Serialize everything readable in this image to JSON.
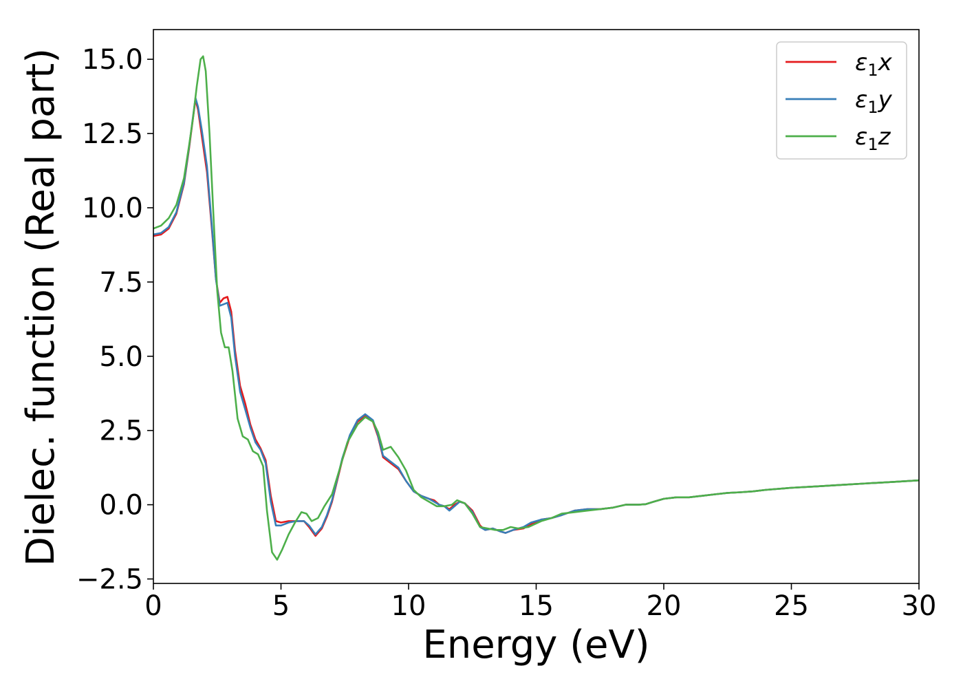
{
  "chart_data": {
    "type": "line",
    "title": "",
    "xlabel": "Energy (eV)",
    "ylabel": "Dielec. function (Real part)",
    "xlim": [
      0,
      30
    ],
    "ylim": [
      -2.65,
      16.0
    ],
    "x_ticks": [
      0,
      5,
      10,
      15,
      20,
      25,
      30
    ],
    "x_tick_labels": [
      "0",
      "5",
      "10",
      "15",
      "20",
      "25",
      "30"
    ],
    "y_ticks": [
      -2.5,
      0,
      2.5,
      5,
      7.5,
      10,
      12.5,
      15
    ],
    "y_tick_labels": [
      "−2.5",
      "0.0",
      "2.5",
      "5.0",
      "7.5",
      "10.0",
      "12.5",
      "15.0"
    ],
    "grid": false,
    "legend_position": "top-right",
    "series": [
      {
        "name": "ε1x",
        "legend_symbol": "ε",
        "legend_subscript": "1",
        "legend_suffix": "x",
        "color": "#e41a1c",
        "points": [
          [
            0,
            9.05
          ],
          [
            0.3,
            9.1
          ],
          [
            0.6,
            9.3
          ],
          [
            0.9,
            9.8
          ],
          [
            1.2,
            10.8
          ],
          [
            1.4,
            12.0
          ],
          [
            1.55,
            13.0
          ],
          [
            1.65,
            13.65
          ],
          [
            1.75,
            13.3
          ],
          [
            1.9,
            12.4
          ],
          [
            2.1,
            11.2
          ],
          [
            2.3,
            9.2
          ],
          [
            2.45,
            7.6
          ],
          [
            2.6,
            6.8
          ],
          [
            2.75,
            6.95
          ],
          [
            2.9,
            7.0
          ],
          [
            3.05,
            6.5
          ],
          [
            3.2,
            5.2
          ],
          [
            3.4,
            4.0
          ],
          [
            3.6,
            3.4
          ],
          [
            3.8,
            2.7
          ],
          [
            4.0,
            2.2
          ],
          [
            4.2,
            1.9
          ],
          [
            4.4,
            1.5
          ],
          [
            4.6,
            0.3
          ],
          [
            4.8,
            -0.55
          ],
          [
            5.0,
            -0.6
          ],
          [
            5.3,
            -0.55
          ],
          [
            5.6,
            -0.55
          ],
          [
            5.9,
            -0.55
          ],
          [
            6.1,
            -0.75
          ],
          [
            6.35,
            -1.05
          ],
          [
            6.6,
            -0.8
          ],
          [
            6.8,
            -0.4
          ],
          [
            7.0,
            0.1
          ],
          [
            7.2,
            0.8
          ],
          [
            7.4,
            1.5
          ],
          [
            7.7,
            2.3
          ],
          [
            8.0,
            2.8
          ],
          [
            8.3,
            3.0
          ],
          [
            8.6,
            2.8
          ],
          [
            8.8,
            2.3
          ],
          [
            9.0,
            1.6
          ],
          [
            9.3,
            1.4
          ],
          [
            9.6,
            1.2
          ],
          [
            9.9,
            0.8
          ],
          [
            10.2,
            0.45
          ],
          [
            10.5,
            0.3
          ],
          [
            10.8,
            0.2
          ],
          [
            11.0,
            0.15
          ],
          [
            11.2,
            0.0
          ],
          [
            11.4,
            -0.05
          ],
          [
            11.6,
            -0.15
          ],
          [
            11.8,
            0.0
          ],
          [
            12.0,
            0.1
          ],
          [
            12.2,
            0.05
          ],
          [
            12.5,
            -0.2
          ],
          [
            12.8,
            -0.7
          ],
          [
            13.0,
            -0.85
          ],
          [
            13.3,
            -0.8
          ],
          [
            13.6,
            -0.9
          ],
          [
            13.8,
            -0.95
          ],
          [
            14.1,
            -0.85
          ],
          [
            14.5,
            -0.8
          ],
          [
            14.8,
            -0.65
          ],
          [
            15.2,
            -0.5
          ],
          [
            15.6,
            -0.45
          ],
          [
            16.0,
            -0.35
          ],
          [
            16.5,
            -0.2
          ],
          [
            17.0,
            -0.15
          ],
          [
            17.5,
            -0.15
          ],
          [
            18.0,
            -0.1
          ],
          [
            18.5,
            0.0
          ],
          [
            19.0,
            0.0
          ],
          [
            19.3,
            0.02
          ],
          [
            19.6,
            0.1
          ],
          [
            20.0,
            0.2
          ],
          [
            20.5,
            0.25
          ],
          [
            21.0,
            0.25
          ],
          [
            21.5,
            0.3
          ],
          [
            22.0,
            0.35
          ],
          [
            22.5,
            0.4
          ],
          [
            23.0,
            0.42
          ],
          [
            23.5,
            0.45
          ],
          [
            24.0,
            0.5
          ],
          [
            25.0,
            0.57
          ],
          [
            26.0,
            0.62
          ],
          [
            27.0,
            0.67
          ],
          [
            28.0,
            0.72
          ],
          [
            29.0,
            0.77
          ],
          [
            30.0,
            0.82
          ]
        ]
      },
      {
        "name": "ε1y",
        "legend_symbol": "ε",
        "legend_subscript": "1",
        "legend_suffix": "y",
        "color": "#377eb8",
        "points": [
          [
            0,
            9.1
          ],
          [
            0.3,
            9.15
          ],
          [
            0.6,
            9.35
          ],
          [
            0.9,
            9.85
          ],
          [
            1.2,
            10.85
          ],
          [
            1.4,
            12.05
          ],
          [
            1.55,
            13.05
          ],
          [
            1.65,
            13.7
          ],
          [
            1.75,
            13.4
          ],
          [
            1.9,
            12.6
          ],
          [
            2.1,
            11.4
          ],
          [
            2.3,
            9.3
          ],
          [
            2.45,
            7.6
          ],
          [
            2.6,
            6.7
          ],
          [
            2.75,
            6.75
          ],
          [
            2.9,
            6.8
          ],
          [
            3.05,
            6.3
          ],
          [
            3.2,
            5.0
          ],
          [
            3.4,
            3.8
          ],
          [
            3.6,
            3.2
          ],
          [
            3.8,
            2.6
          ],
          [
            4.0,
            2.1
          ],
          [
            4.2,
            1.85
          ],
          [
            4.4,
            1.4
          ],
          [
            4.6,
            0.1
          ],
          [
            4.8,
            -0.7
          ],
          [
            5.0,
            -0.7
          ],
          [
            5.3,
            -0.6
          ],
          [
            5.6,
            -0.55
          ],
          [
            5.9,
            -0.55
          ],
          [
            6.1,
            -0.7
          ],
          [
            6.35,
            -1.0
          ],
          [
            6.6,
            -0.75
          ],
          [
            6.8,
            -0.35
          ],
          [
            7.0,
            0.15
          ],
          [
            7.2,
            0.85
          ],
          [
            7.4,
            1.55
          ],
          [
            7.7,
            2.35
          ],
          [
            8.0,
            2.85
          ],
          [
            8.3,
            3.05
          ],
          [
            8.6,
            2.85
          ],
          [
            8.8,
            2.35
          ],
          [
            9.0,
            1.65
          ],
          [
            9.3,
            1.45
          ],
          [
            9.6,
            1.25
          ],
          [
            9.9,
            0.8
          ],
          [
            10.2,
            0.45
          ],
          [
            10.5,
            0.3
          ],
          [
            10.8,
            0.2
          ],
          [
            11.0,
            0.1
          ],
          [
            11.2,
            0.0
          ],
          [
            11.4,
            -0.05
          ],
          [
            11.6,
            -0.2
          ],
          [
            11.8,
            -0.05
          ],
          [
            12.0,
            0.1
          ],
          [
            12.2,
            0.05
          ],
          [
            12.5,
            -0.25
          ],
          [
            12.8,
            -0.75
          ],
          [
            13.0,
            -0.85
          ],
          [
            13.3,
            -0.8
          ],
          [
            13.6,
            -0.9
          ],
          [
            13.8,
            -0.95
          ],
          [
            14.1,
            -0.85
          ],
          [
            14.5,
            -0.75
          ],
          [
            14.8,
            -0.6
          ],
          [
            15.2,
            -0.5
          ],
          [
            15.6,
            -0.45
          ],
          [
            16.0,
            -0.35
          ],
          [
            16.5,
            -0.2
          ],
          [
            17.0,
            -0.15
          ],
          [
            17.5,
            -0.15
          ],
          [
            18.0,
            -0.1
          ],
          [
            18.5,
            0.0
          ],
          [
            19.0,
            0.0
          ],
          [
            19.3,
            0.02
          ],
          [
            19.6,
            0.1
          ],
          [
            20.0,
            0.2
          ],
          [
            20.5,
            0.25
          ],
          [
            21.0,
            0.25
          ],
          [
            21.5,
            0.3
          ],
          [
            22.0,
            0.35
          ],
          [
            22.5,
            0.4
          ],
          [
            23.0,
            0.42
          ],
          [
            23.5,
            0.45
          ],
          [
            24.0,
            0.5
          ],
          [
            25.0,
            0.57
          ],
          [
            26.0,
            0.62
          ],
          [
            27.0,
            0.67
          ],
          [
            28.0,
            0.72
          ],
          [
            29.0,
            0.77
          ],
          [
            30.0,
            0.82
          ]
        ]
      },
      {
        "name": "ε1z",
        "legend_symbol": "ε",
        "legend_subscript": "1",
        "legend_suffix": "z",
        "color": "#4daf4a",
        "points": [
          [
            0,
            9.3
          ],
          [
            0.3,
            9.4
          ],
          [
            0.6,
            9.65
          ],
          [
            0.9,
            10.1
          ],
          [
            1.2,
            11.0
          ],
          [
            1.4,
            12.1
          ],
          [
            1.55,
            13.0
          ],
          [
            1.7,
            14.1
          ],
          [
            1.85,
            15.0
          ],
          [
            1.95,
            15.1
          ],
          [
            2.05,
            14.6
          ],
          [
            2.2,
            12.5
          ],
          [
            2.35,
            9.8
          ],
          [
            2.5,
            7.2
          ],
          [
            2.65,
            5.8
          ],
          [
            2.8,
            5.3
          ],
          [
            2.95,
            5.3
          ],
          [
            3.1,
            4.5
          ],
          [
            3.3,
            2.9
          ],
          [
            3.5,
            2.3
          ],
          [
            3.7,
            2.2
          ],
          [
            3.9,
            1.8
          ],
          [
            4.1,
            1.7
          ],
          [
            4.3,
            1.3
          ],
          [
            4.45,
            -0.2
          ],
          [
            4.65,
            -1.6
          ],
          [
            4.85,
            -1.85
          ],
          [
            5.05,
            -1.5
          ],
          [
            5.3,
            -1.0
          ],
          [
            5.55,
            -0.6
          ],
          [
            5.8,
            -0.25
          ],
          [
            6.0,
            -0.3
          ],
          [
            6.2,
            -0.55
          ],
          [
            6.45,
            -0.45
          ],
          [
            6.7,
            -0.05
          ],
          [
            7.0,
            0.35
          ],
          [
            7.3,
            1.2
          ],
          [
            7.6,
            2.1
          ],
          [
            8.0,
            2.7
          ],
          [
            8.3,
            2.95
          ],
          [
            8.6,
            2.8
          ],
          [
            8.8,
            2.45
          ],
          [
            9.0,
            1.85
          ],
          [
            9.3,
            1.95
          ],
          [
            9.6,
            1.6
          ],
          [
            9.9,
            1.15
          ],
          [
            10.2,
            0.5
          ],
          [
            10.5,
            0.25
          ],
          [
            10.8,
            0.1
          ],
          [
            11.1,
            -0.05
          ],
          [
            11.4,
            -0.05
          ],
          [
            11.7,
            0.0
          ],
          [
            11.9,
            0.15
          ],
          [
            12.2,
            0.05
          ],
          [
            12.5,
            -0.3
          ],
          [
            12.8,
            -0.75
          ],
          [
            13.1,
            -0.8
          ],
          [
            13.4,
            -0.85
          ],
          [
            13.7,
            -0.85
          ],
          [
            14.0,
            -0.75
          ],
          [
            14.3,
            -0.8
          ],
          [
            14.7,
            -0.75
          ],
          [
            15.2,
            -0.55
          ],
          [
            15.6,
            -0.45
          ],
          [
            16.0,
            -0.3
          ],
          [
            16.5,
            -0.25
          ],
          [
            17.0,
            -0.2
          ],
          [
            17.5,
            -0.15
          ],
          [
            18.0,
            -0.1
          ],
          [
            18.5,
            0.0
          ],
          [
            19.0,
            0.0
          ],
          [
            19.3,
            0.02
          ],
          [
            19.6,
            0.1
          ],
          [
            20.0,
            0.2
          ],
          [
            20.5,
            0.25
          ],
          [
            21.0,
            0.25
          ],
          [
            21.5,
            0.3
          ],
          [
            22.0,
            0.35
          ],
          [
            22.5,
            0.4
          ],
          [
            23.0,
            0.42
          ],
          [
            23.5,
            0.45
          ],
          [
            24.0,
            0.5
          ],
          [
            25.0,
            0.57
          ],
          [
            26.0,
            0.62
          ],
          [
            27.0,
            0.67
          ],
          [
            28.0,
            0.72
          ],
          [
            29.0,
            0.77
          ],
          [
            30.0,
            0.82
          ]
        ]
      }
    ]
  }
}
